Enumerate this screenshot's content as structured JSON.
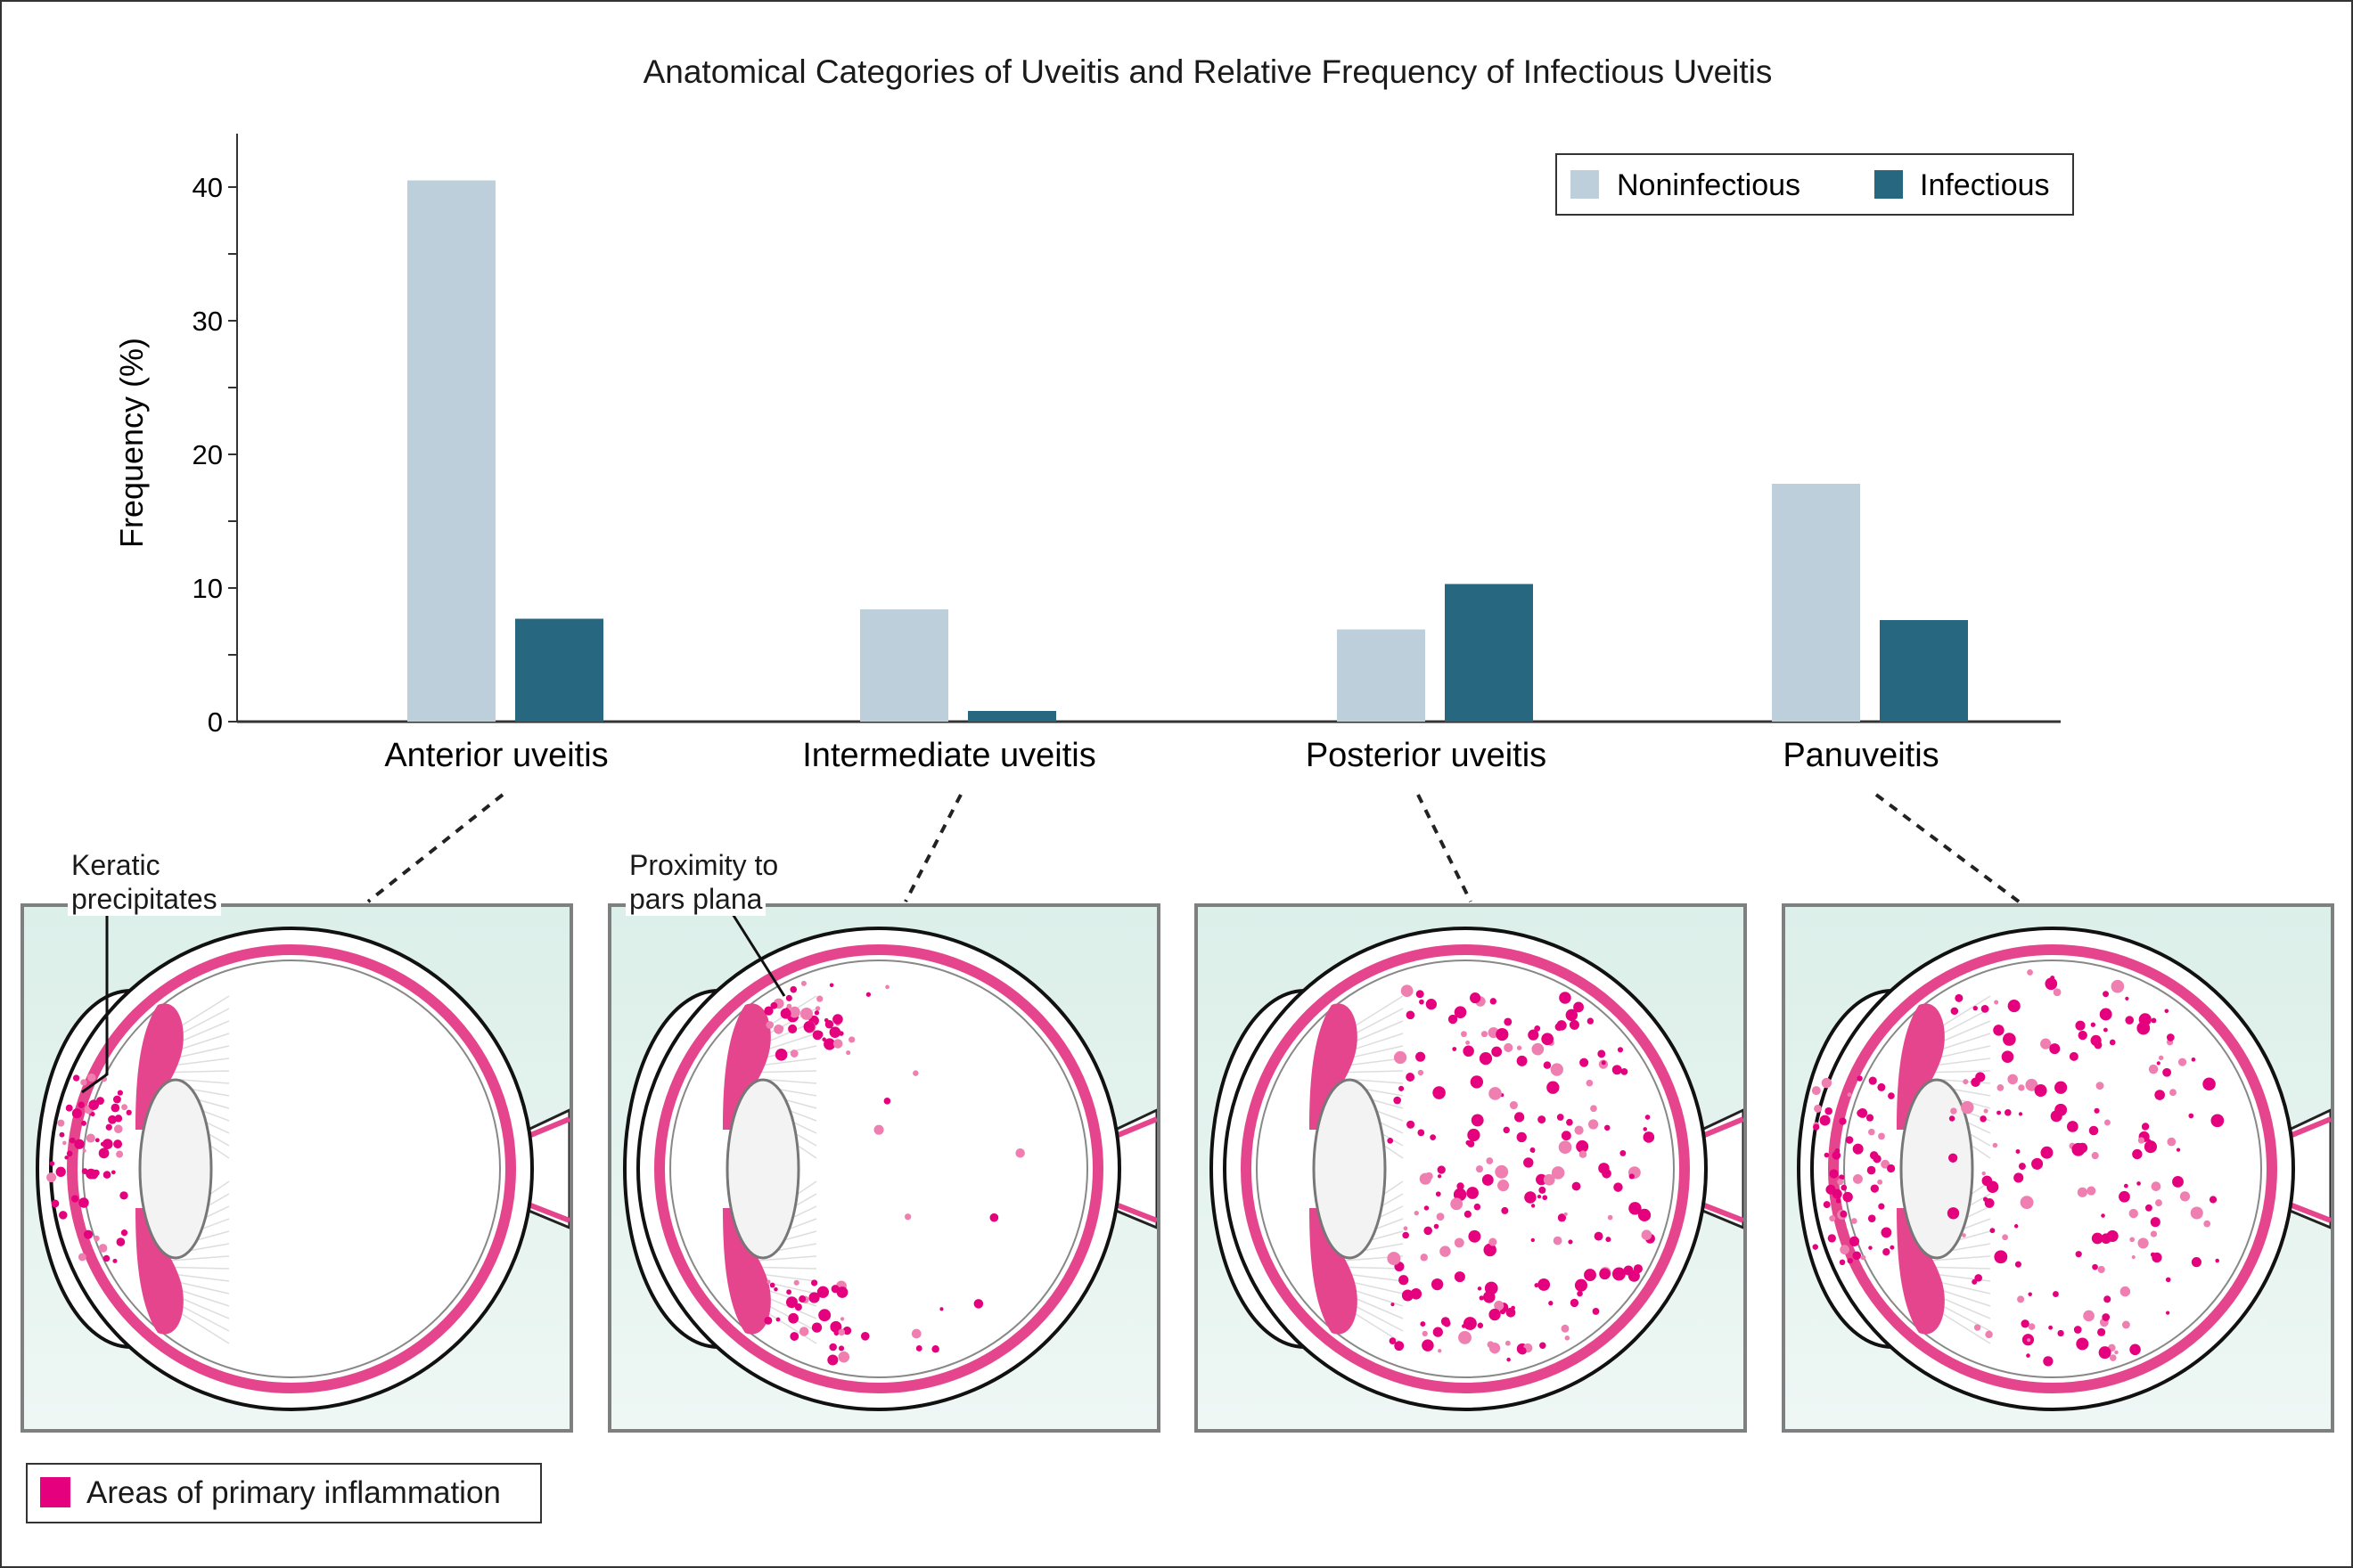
{
  "chart_data": {
    "type": "bar",
    "title": "Anatomical Categories of Uveitis and Relative Frequency of Infectious Uveitis",
    "ylabel": "Frequency (%)",
    "xlabel": "",
    "ylim": [
      0,
      44
    ],
    "yticks": [
      0,
      10,
      20,
      30,
      40
    ],
    "categories": [
      "Anterior uveitis",
      "Intermediate uveitis",
      "Posterior uveitis",
      "Panuveitis"
    ],
    "series": [
      {
        "name": "Noninfectious",
        "color": "#bccfda",
        "values": [
          40.5,
          8.4,
          6.9,
          17.8
        ]
      },
      {
        "name": "Infectious",
        "color": "#276880",
        "values": [
          7.7,
          0.8,
          10.3,
          7.6
        ]
      }
    ],
    "legend_position": "top-right",
    "grid": false
  },
  "annotations": {
    "keratic": [
      "Keratic",
      "precipitates"
    ],
    "pars_plana": [
      "Proximity to",
      "pars plana"
    ]
  },
  "bottom_legend": {
    "label": "Areas of primary inflammation",
    "color": "#e5007e"
  }
}
